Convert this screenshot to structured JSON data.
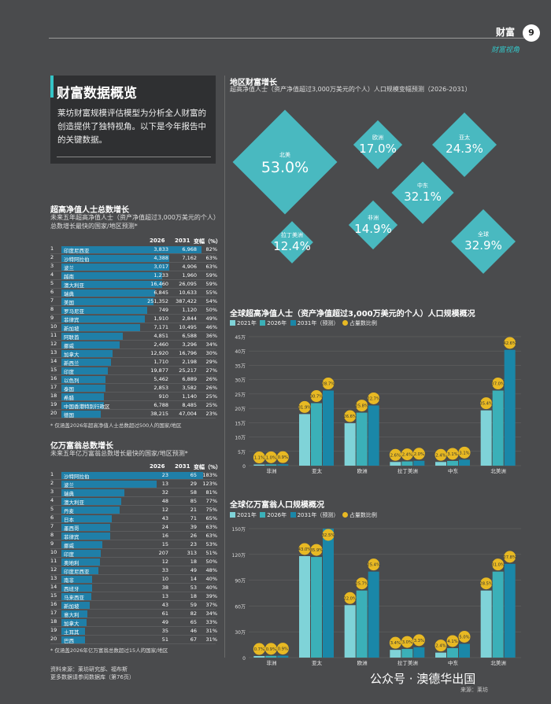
{
  "header": {
    "title": "财富",
    "page": "9",
    "subtitle": "财富视角"
  },
  "intro": {
    "title": "财富数据概览",
    "text": "莱坊财富规模评估模型为分析全人财富的创造提供了独特视角。以下是今年报告中的关键数据。"
  },
  "uhnwi_table": {
    "title": "超高净值人士总数增长",
    "subtitle": "未来五年超高净值人士（资产净值超过3,000万美元的个人）总数增长最快的国家/地区预测*",
    "col1": "2026",
    "col2": "2031",
    "col3": "变幅（%）",
    "rows": [
      {
        "rank": "1",
        "name": "印度尼西亚",
        "v2026": "3,833",
        "v2031": "6,968",
        "pct": "82%",
        "p": 82
      },
      {
        "rank": "2",
        "name": "沙特阿拉伯",
        "v2026": "4,388",
        "v2031": "7,162",
        "pct": "63%",
        "p": 63
      },
      {
        "rank": "3",
        "name": "波兰",
        "v2026": "3,017",
        "v2031": "4,906",
        "pct": "63%",
        "p": 63
      },
      {
        "rank": "4",
        "name": "越南",
        "v2026": "1,233",
        "v2031": "1,960",
        "pct": "59%",
        "p": 59
      },
      {
        "rank": "5",
        "name": "澳大利亚",
        "v2026": "16,460",
        "v2031": "26,095",
        "pct": "59%",
        "p": 59
      },
      {
        "rank": "6",
        "name": "瑞典",
        "v2026": "6,845",
        "v2031": "10,633",
        "pct": "55%",
        "p": 55
      },
      {
        "rank": "7",
        "name": "美国",
        "v2026": "251,352",
        "v2031": "387,422",
        "pct": "54%",
        "p": 54
      },
      {
        "rank": "8",
        "name": "罗马尼亚",
        "v2026": "749",
        "v2031": "1,120",
        "pct": "50%",
        "p": 50
      },
      {
        "rank": "9",
        "name": "菲律宾",
        "v2026": "1,910",
        "v2031": "2,844",
        "pct": "49%",
        "p": 49
      },
      {
        "rank": "10",
        "name": "新加坡",
        "v2026": "7,171",
        "v2031": "10,495",
        "pct": "46%",
        "p": 46
      },
      {
        "rank": "11",
        "name": "阿联酋",
        "v2026": "4,851",
        "v2031": "6,588",
        "pct": "36%",
        "p": 36
      },
      {
        "rank": "12",
        "name": "挪威",
        "v2026": "2,460",
        "v2031": "3,296",
        "pct": "34%",
        "p": 34
      },
      {
        "rank": "13",
        "name": "加拿大",
        "v2026": "12,920",
        "v2031": "16,796",
        "pct": "30%",
        "p": 30
      },
      {
        "rank": "14",
        "name": "新西兰",
        "v2026": "1,710",
        "v2031": "2,198",
        "pct": "29%",
        "p": 29
      },
      {
        "rank": "15",
        "name": "印度",
        "v2026": "19,877",
        "v2031": "25,217",
        "pct": "27%",
        "p": 27
      },
      {
        "rank": "16",
        "name": "以色列",
        "v2026": "5,462",
        "v2031": "6,889",
        "pct": "26%",
        "p": 26
      },
      {
        "rank": "17",
        "name": "泰国",
        "v2026": "2,853",
        "v2031": "3,582",
        "pct": "26%",
        "p": 26
      },
      {
        "rank": "18",
        "name": "希腊",
        "v2026": "910",
        "v2031": "1,140",
        "pct": "25%",
        "p": 25
      },
      {
        "rank": "19",
        "name": "中国香港特别行政区",
        "v2026": "6,788",
        "v2031": "8,485",
        "pct": "25%",
        "p": 25
      },
      {
        "rank": "20",
        "name": "德国",
        "v2026": "38,215",
        "v2031": "47,004",
        "pct": "23%",
        "p": 23
      }
    ],
    "note": "* 仅涵盖2026年超高净值人士总数超过500人的国家/地区"
  },
  "billion_table": {
    "title": "亿万富翁总数增长",
    "subtitle": "未来五年亿万富翁总数增长最快的国家/地区预测*",
    "col1": "2026",
    "col2": "2031",
    "col3": "变幅（%）",
    "rows": [
      {
        "rank": "1",
        "name": "沙特阿拉伯",
        "v2026": "23",
        "v2031": "65",
        "pct": "183%",
        "p": 183
      },
      {
        "rank": "2",
        "name": "波兰",
        "v2026": "13",
        "v2031": "29",
        "pct": "123%",
        "p": 123
      },
      {
        "rank": "3",
        "name": "瑞典",
        "v2026": "32",
        "v2031": "58",
        "pct": "81%",
        "p": 81
      },
      {
        "rank": "4",
        "name": "澳大利亚",
        "v2026": "48",
        "v2031": "85",
        "pct": "77%",
        "p": 77
      },
      {
        "rank": "5",
        "name": "丹麦",
        "v2026": "12",
        "v2031": "21",
        "pct": "75%",
        "p": 75
      },
      {
        "rank": "6",
        "name": "日本",
        "v2026": "43",
        "v2031": "71",
        "pct": "65%",
        "p": 65
      },
      {
        "rank": "7",
        "name": "墨西哥",
        "v2026": "24",
        "v2031": "39",
        "pct": "63%",
        "p": 63
      },
      {
        "rank": "8",
        "name": "菲律宾",
        "v2026": "16",
        "v2031": "26",
        "pct": "63%",
        "p": 63
      },
      {
        "rank": "9",
        "name": "挪威",
        "v2026": "15",
        "v2031": "23",
        "pct": "53%",
        "p": 53
      },
      {
        "rank": "10",
        "name": "印度",
        "v2026": "207",
        "v2031": "313",
        "pct": "51%",
        "p": 51
      },
      {
        "rank": "11",
        "name": "奥地利",
        "v2026": "12",
        "v2031": "18",
        "pct": "50%",
        "p": 50
      },
      {
        "rank": "12",
        "name": "印度尼西亚",
        "v2026": "33",
        "v2031": "49",
        "pct": "48%",
        "p": 48
      },
      {
        "rank": "13",
        "name": "南非",
        "v2026": "10",
        "v2031": "14",
        "pct": "40%",
        "p": 40
      },
      {
        "rank": "14",
        "name": "西班牙",
        "v2026": "38",
        "v2031": "53",
        "pct": "40%",
        "p": 40
      },
      {
        "rank": "15",
        "name": "马来西亚",
        "v2026": "13",
        "v2031": "18",
        "pct": "39%",
        "p": 39
      },
      {
        "rank": "16",
        "name": "新加坡",
        "v2026": "43",
        "v2031": "59",
        "pct": "37%",
        "p": 37
      },
      {
        "rank": "17",
        "name": "意大利",
        "v2026": "61",
        "v2031": "82",
        "pct": "34%",
        "p": 34
      },
      {
        "rank": "18",
        "name": "加拿大",
        "v2026": "49",
        "v2031": "65",
        "pct": "33%",
        "p": 33
      },
      {
        "rank": "19",
        "name": "土耳其",
        "v2026": "35",
        "v2031": "46",
        "pct": "31%",
        "p": 31
      },
      {
        "rank": "20",
        "name": "巴西",
        "v2026": "51",
        "v2031": "67",
        "pct": "31%",
        "p": 31
      }
    ],
    "note": "* 仅涵盖2026年亿万富翁总数超过15人的国家/地区"
  },
  "footer": {
    "source": "资料来源：莱坊研究部、福布斯",
    "more": "更多数据请参阅数据库（第76页）"
  },
  "watermark": {
    "main": "公众号 · 澳德华出国",
    "sub": "来源：莱坊"
  },
  "colors": {
    "c2021": "#7fd3d8",
    "c2026": "#3bb0b8",
    "c2031": "#1a87a8",
    "dot": "#e8b923",
    "diamond": "#49b9c0"
  },
  "chart_data": [
    {
      "type": "diamond",
      "title": "地区财富增长",
      "subtitle": "超高净值人士（资产净值超过3,000万美元的个人）人口规模变幅预测（2026-2031）",
      "items": [
        {
          "name": "北美",
          "value": "53.0%"
        },
        {
          "name": "欧洲",
          "value": "17.0%"
        },
        {
          "name": "亚太",
          "value": "24.3%"
        },
        {
          "name": "中东",
          "value": "32.1%"
        },
        {
          "name": "非洲",
          "value": "14.9%"
        },
        {
          "name": "拉丁美洲",
          "value": "12.4%"
        },
        {
          "name": "全球",
          "value": "32.9%"
        }
      ]
    },
    {
      "type": "bar",
      "title": "全球超高净值人士（资产净值超过3,000万美元的个人）人口规模概况",
      "legend": [
        "2021年",
        "2026年",
        "2031年（预测）",
        "占量数比例"
      ],
      "categories": [
        "非洲",
        "亚太",
        "欧洲",
        "拉丁美洲",
        "中东",
        "北美洲"
      ],
      "yticks": [
        "0",
        "5万",
        "10万",
        "15万",
        "20万",
        "25万",
        "30万",
        "35万",
        "40万",
        "45万"
      ],
      "ylim": [
        0,
        450000
      ],
      "series": [
        {
          "name": "2021年",
          "values": [
            4000,
            180000,
            148000,
            13000,
            13000,
            193000
          ]
        },
        {
          "name": "2026年",
          "values": [
            4500,
            218000,
            185000,
            14800,
            16500,
            262000
          ]
        },
        {
          "name": "2031年（预测）",
          "values": [
            5000,
            262000,
            210000,
            17000,
            21000,
            404000
          ]
        }
      ],
      "shares": [
        [
          "1.1%",
          "1.0%",
          "0.9%"
        ],
        [
          "31.9%",
          "30.7%",
          "28.7%"
        ],
        [
          "26.6%",
          "25.8%",
          "22.7%"
        ],
        [
          "2.6%",
          "2.4%",
          "2.0%"
        ],
        [
          "2.4%",
          "3.1%",
          "3.1%"
        ],
        [
          "35.4%",
          "37.0%",
          "42.6%"
        ]
      ]
    },
    {
      "type": "bar",
      "title": "全球亿万富翁人口规模概况",
      "legend": [
        "2021年",
        "2026年",
        "2031年（预测）",
        "占量数比例"
      ],
      "categories": [
        "非洲",
        "亚太",
        "欧洲",
        "拉丁美洲",
        "中东",
        "北美洲"
      ],
      "yticks": [
        "0",
        "30万",
        "60万",
        "90万",
        "120万",
        "150万"
      ],
      "ylim": [
        0,
        1500000
      ],
      "series": [
        {
          "name": "2021年",
          "values": [
            18000,
            1180000,
            610000,
            90000,
            58000,
            780000
          ]
        },
        {
          "name": "2026年",
          "values": [
            20000,
            1170000,
            780000,
            100000,
            110000,
            1000000
          ]
        },
        {
          "name": "2031年（预测）",
          "values": [
            22000,
            1500000,
            1000000,
            120000,
            160000,
            1090000
          ]
        }
      ],
      "shares": [
        [
          "0.7%",
          "0.9%",
          "0.9%"
        ],
        [
          "43.0%",
          "35.9%",
          "32.5%"
        ],
        [
          "22.0%",
          "25.7%",
          "25.4%"
        ],
        [
          "3.4%",
          "3.0%",
          "3.3%"
        ],
        [
          "2.4%",
          "4.1%",
          "5.0%"
        ],
        [
          "28.5%",
          "31.0%",
          "27.8%"
        ]
      ]
    }
  ]
}
